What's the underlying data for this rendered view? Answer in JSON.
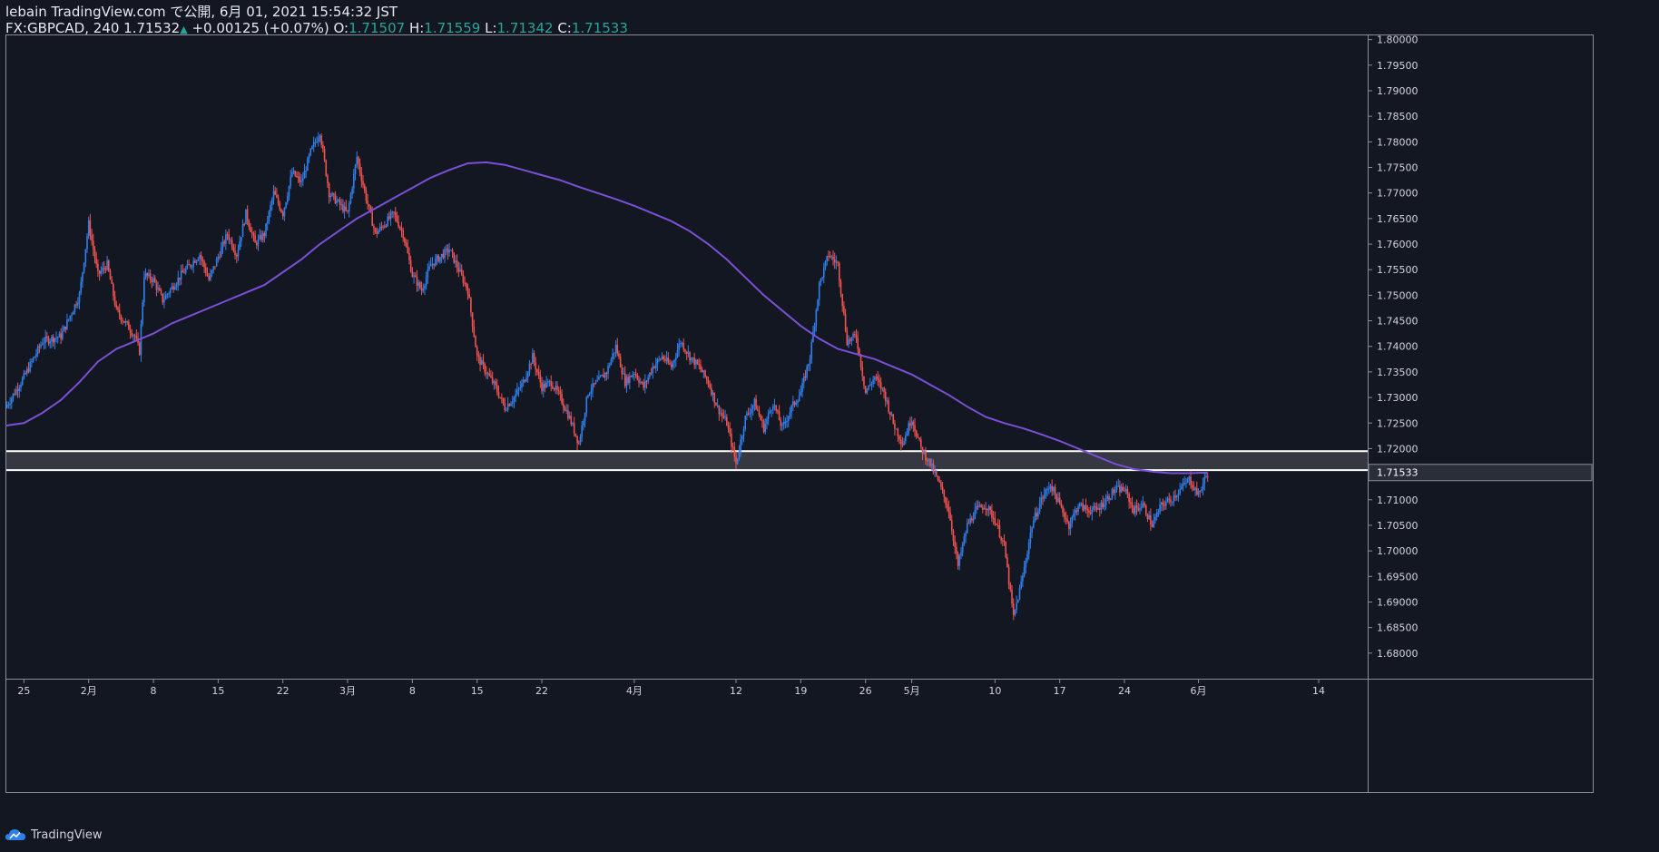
{
  "header": {
    "publish_line": "lebain TradingView.com で公開, 6月 01, 2021 15:54:32 JST",
    "symbol": "FX:GBPCAD, 240",
    "last": "1.71532",
    "change": "+0.00125 (+0.07%)",
    "open_label": "O:",
    "open": "1.71507",
    "high_label": "H:",
    "high": "1.71559",
    "low_label": "L:",
    "low": "1.71342",
    "close_label": "C:",
    "close": "1.71533"
  },
  "footer": {
    "brand": "TradingView"
  },
  "colors": {
    "background": "#131722",
    "up": "#2f80ed",
    "down": "#ef5350",
    "ma": "#7b4fd6",
    "zone_fill": "#3a3c44",
    "zone_line": "#ffffff",
    "axis_text": "#d1d4dc",
    "price_badge": "#2a2e39"
  },
  "chart_data": {
    "type": "candlestick",
    "title": "FX:GBPCAD, 240",
    "ylim": [
      1.675,
      1.801
    ],
    "y_ticks": [
      "1.80000",
      "1.79500",
      "1.79000",
      "1.78500",
      "1.78000",
      "1.77500",
      "1.77000",
      "1.76500",
      "1.76000",
      "1.75500",
      "1.75000",
      "1.74500",
      "1.74000",
      "1.73500",
      "1.73000",
      "1.72500",
      "1.72000",
      "1.71500",
      "1.71000",
      "1.70500",
      "1.70000",
      "1.69500",
      "1.69000",
      "1.68500",
      "1.68000"
    ],
    "y_tick_values": [
      1.8,
      1.795,
      1.79,
      1.785,
      1.78,
      1.775,
      1.77,
      1.765,
      1.76,
      1.755,
      1.75,
      1.745,
      1.74,
      1.735,
      1.73,
      1.725,
      1.72,
      1.715,
      1.71,
      1.705,
      1.7,
      1.695,
      1.69,
      1.685,
      1.68
    ],
    "x_ticks": [
      {
        "label": "25",
        "day": 0
      },
      {
        "label": "2月",
        "day": 7
      },
      {
        "label": "8",
        "day": 14
      },
      {
        "label": "15",
        "day": 21
      },
      {
        "label": "22",
        "day": 28
      },
      {
        "label": "3月",
        "day": 35
      },
      {
        "label": "8",
        "day": 42
      },
      {
        "label": "15",
        "day": 49
      },
      {
        "label": "22",
        "day": 56
      },
      {
        "label": "4月",
        "day": 66
      },
      {
        "label": "12",
        "day": 77
      },
      {
        "label": "19",
        "day": 84
      },
      {
        "label": "26",
        "day": 91
      },
      {
        "label": "5月",
        "day": 96
      },
      {
        "label": "10",
        "day": 105
      },
      {
        "label": "17",
        "day": 112
      },
      {
        "label": "24",
        "day": 119
      },
      {
        "label": "6月",
        "day": 127
      },
      {
        "label": "14",
        "day": 140
      }
    ],
    "x_domain_days": [
      -2,
      145.3
    ],
    "current_price": "1.71533",
    "current_price_value": 1.71533,
    "zone": {
      "top": 1.7195,
      "bottom": 1.7158
    },
    "path_points": [
      [
        -2,
        1.728
      ],
      [
        0,
        1.734
      ],
      [
        2,
        1.741
      ],
      [
        4,
        1.742
      ],
      [
        6,
        1.75
      ],
      [
        7,
        1.764
      ],
      [
        8,
        1.754
      ],
      [
        9,
        1.756
      ],
      [
        10,
        1.747
      ],
      [
        12,
        1.742
      ],
      [
        12.5,
        1.739
      ],
      [
        13,
        1.754
      ],
      [
        14,
        1.753
      ],
      [
        15,
        1.749
      ],
      [
        17,
        1.754
      ],
      [
        19,
        1.758
      ],
      [
        20,
        1.753
      ],
      [
        22,
        1.762
      ],
      [
        23,
        1.758
      ],
      [
        24,
        1.766
      ],
      [
        25,
        1.76
      ],
      [
        26,
        1.762
      ],
      [
        27,
        1.77
      ],
      [
        28,
        1.766
      ],
      [
        29,
        1.774
      ],
      [
        30,
        1.772
      ],
      [
        31,
        1.778
      ],
      [
        32,
        1.782
      ],
      [
        33,
        1.77
      ],
      [
        35,
        1.766
      ],
      [
        36,
        1.777
      ],
      [
        37,
        1.769
      ],
      [
        38,
        1.762
      ],
      [
        40,
        1.766
      ],
      [
        41,
        1.762
      ],
      [
        42,
        1.754
      ],
      [
        43,
        1.751
      ],
      [
        44,
        1.756
      ],
      [
        46,
        1.759
      ],
      [
        47,
        1.755
      ],
      [
        48,
        1.751
      ],
      [
        49,
        1.738
      ],
      [
        50,
        1.735
      ],
      [
        51,
        1.732
      ],
      [
        52,
        1.728
      ],
      [
        53,
        1.73
      ],
      [
        54,
        1.733
      ],
      [
        55,
        1.738
      ],
      [
        56,
        1.732
      ],
      [
        57,
        1.733
      ],
      [
        58,
        1.73
      ],
      [
        59,
        1.726
      ],
      [
        60,
        1.721
      ],
      [
        61,
        1.731
      ],
      [
        62,
        1.733
      ],
      [
        63,
        1.735
      ],
      [
        64,
        1.74
      ],
      [
        65,
        1.733
      ],
      [
        66,
        1.735
      ],
      [
        67,
        1.732
      ],
      [
        68,
        1.736
      ],
      [
        69,
        1.738
      ],
      [
        70,
        1.736
      ],
      [
        71,
        1.741
      ],
      [
        72,
        1.738
      ],
      [
        73,
        1.736
      ],
      [
        74,
        1.733
      ],
      [
        75,
        1.728
      ],
      [
        76,
        1.725
      ],
      [
        77,
        1.717
      ],
      [
        78,
        1.726
      ],
      [
        79,
        1.729
      ],
      [
        80,
        1.724
      ],
      [
        81,
        1.729
      ],
      [
        82,
        1.724
      ],
      [
        83,
        1.728
      ],
      [
        84,
        1.731
      ],
      [
        85,
        1.738
      ],
      [
        86,
        1.752
      ],
      [
        87,
        1.758
      ],
      [
        88,
        1.756
      ],
      [
        89,
        1.741
      ],
      [
        90,
        1.742
      ],
      [
        91,
        1.731
      ],
      [
        92,
        1.734
      ],
      [
        93,
        1.731
      ],
      [
        94,
        1.725
      ],
      [
        95,
        1.721
      ],
      [
        96,
        1.726
      ],
      [
        97,
        1.72
      ],
      [
        98,
        1.717
      ],
      [
        99,
        1.713
      ],
      [
        100,
        1.708
      ],
      [
        101,
        1.697
      ],
      [
        102,
        1.705
      ],
      [
        103,
        1.708
      ],
      [
        104,
        1.709
      ],
      [
        105,
        1.706
      ],
      [
        106,
        1.701
      ],
      [
        107,
        1.687
      ],
      [
        108,
        1.695
      ],
      [
        109,
        1.705
      ],
      [
        110,
        1.71
      ],
      [
        111,
        1.713
      ],
      [
        112,
        1.709
      ],
      [
        113,
        1.705
      ],
      [
        114,
        1.709
      ],
      [
        115,
        1.708
      ],
      [
        116,
        1.708
      ],
      [
        117,
        1.71
      ],
      [
        118,
        1.712
      ],
      [
        119,
        1.712
      ],
      [
        120,
        1.708
      ],
      [
        121,
        1.709
      ],
      [
        122,
        1.705
      ],
      [
        123,
        1.709
      ],
      [
        124,
        1.71
      ],
      [
        125,
        1.712
      ],
      [
        126,
        1.714
      ],
      [
        127,
        1.711
      ],
      [
        128,
        1.7153
      ]
    ],
    "ma_points": [
      [
        -2,
        1.7245
      ],
      [
        0,
        1.725
      ],
      [
        2,
        1.727
      ],
      [
        4,
        1.7295
      ],
      [
        6,
        1.733
      ],
      [
        8,
        1.737
      ],
      [
        10,
        1.7395
      ],
      [
        12,
        1.741
      ],
      [
        14,
        1.7425
      ],
      [
        16,
        1.7445
      ],
      [
        18,
        1.746
      ],
      [
        20,
        1.7475
      ],
      [
        22,
        1.749
      ],
      [
        24,
        1.7505
      ],
      [
        26,
        1.752
      ],
      [
        28,
        1.7545
      ],
      [
        30,
        1.757
      ],
      [
        32,
        1.76
      ],
      [
        34,
        1.7625
      ],
      [
        36,
        1.765
      ],
      [
        38,
        1.767
      ],
      [
        40,
        1.769
      ],
      [
        42,
        1.771
      ],
      [
        44,
        1.773
      ],
      [
        46,
        1.7745
      ],
      [
        48,
        1.7758
      ],
      [
        50,
        1.776
      ],
      [
        52,
        1.7755
      ],
      [
        54,
        1.7745
      ],
      [
        56,
        1.7735
      ],
      [
        58,
        1.7725
      ],
      [
        60,
        1.7712
      ],
      [
        62,
        1.77
      ],
      [
        64,
        1.7688
      ],
      [
        66,
        1.7675
      ],
      [
        68,
        1.766
      ],
      [
        70,
        1.7645
      ],
      [
        72,
        1.7625
      ],
      [
        74,
        1.76
      ],
      [
        76,
        1.757
      ],
      [
        78,
        1.7535
      ],
      [
        80,
        1.75
      ],
      [
        82,
        1.747
      ],
      [
        84,
        1.744
      ],
      [
        86,
        1.7415
      ],
      [
        88,
        1.7395
      ],
      [
        90,
        1.7385
      ],
      [
        92,
        1.7375
      ],
      [
        94,
        1.736
      ],
      [
        96,
        1.7345
      ],
      [
        98,
        1.7325
      ],
      [
        100,
        1.7305
      ],
      [
        102,
        1.7282
      ],
      [
        104,
        1.7262
      ],
      [
        106,
        1.725
      ],
      [
        108,
        1.724
      ],
      [
        110,
        1.7228
      ],
      [
        112,
        1.7215
      ],
      [
        114,
        1.72
      ],
      [
        116,
        1.7185
      ],
      [
        118,
        1.717
      ],
      [
        120,
        1.716
      ],
      [
        122,
        1.7155
      ],
      [
        124,
        1.7152
      ],
      [
        126,
        1.7152
      ],
      [
        128,
        1.7153
      ]
    ]
  }
}
